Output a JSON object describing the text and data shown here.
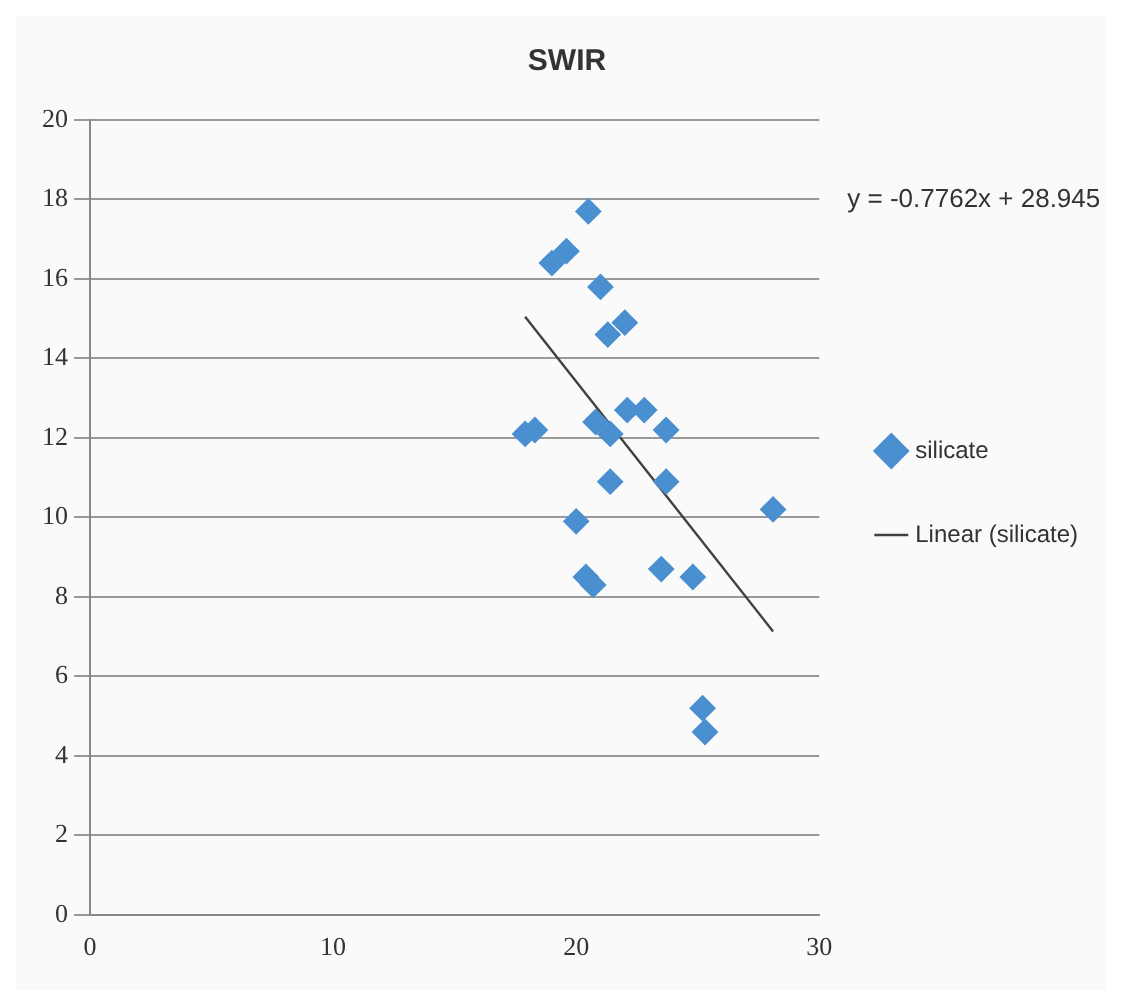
{
  "chart_data": {
    "type": "scatter",
    "title": "SWIR",
    "xlim": [
      0,
      30
    ],
    "xticks": [
      0,
      10,
      20,
      30
    ],
    "ylim": [
      0,
      20
    ],
    "yticks": [
      0,
      2,
      4,
      6,
      8,
      10,
      12,
      14,
      16,
      18,
      20
    ],
    "grid": "y",
    "legend": "right",
    "marker": "diamond",
    "annotations": [
      "y = -0.7762x + 28.945"
    ],
    "series": [
      {
        "name": "silicate",
        "color": "#4a8fd0",
        "x": [
          20.5,
          19.0,
          19.6,
          21.0,
          21.3,
          22.0,
          17.9,
          18.3,
          20.8,
          21.4,
          22.1,
          22.8,
          23.7,
          21.4,
          23.7,
          28.1,
          20.0,
          20.4,
          20.7,
          23.5,
          24.8,
          25.2,
          25.3
        ],
        "values": [
          17.7,
          16.4,
          16.7,
          15.8,
          14.6,
          14.9,
          12.1,
          12.2,
          12.4,
          12.1,
          12.7,
          12.7,
          12.2,
          10.9,
          10.9,
          10.2,
          9.9,
          8.5,
          8.3,
          8.7,
          8.5,
          5.2,
          4.6
        ]
      },
      {
        "name": "Linear (silicate)",
        "type": "line",
        "color": "#404040",
        "line_style": "solid",
        "marker": "none",
        "x": [
          17.9,
          28.1
        ],
        "values": [
          15.05,
          7.13
        ]
      }
    ]
  }
}
